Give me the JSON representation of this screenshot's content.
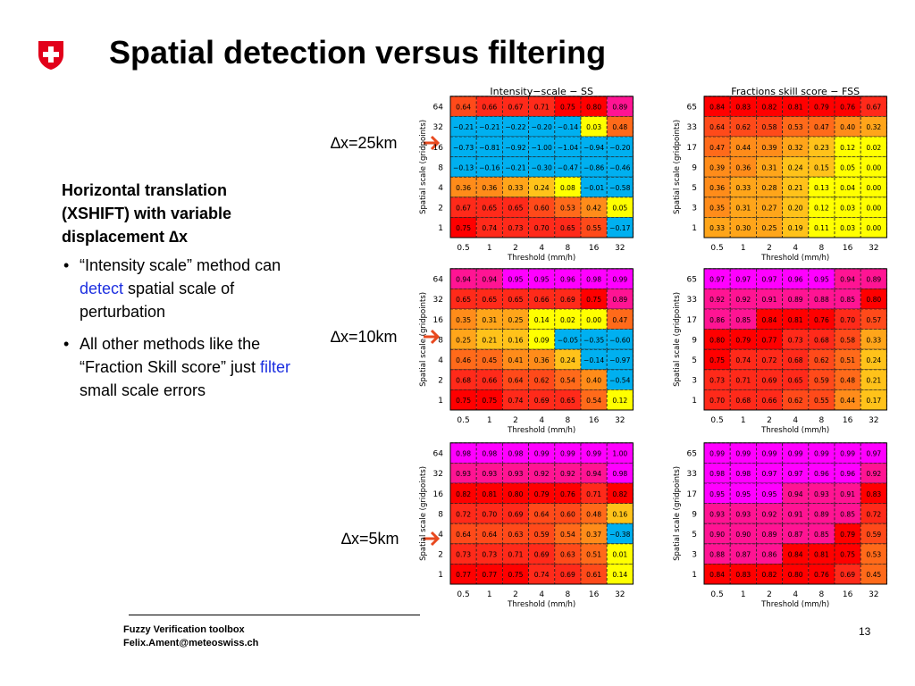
{
  "slide": {
    "title": "Spatial detection versus filtering",
    "heading_line1": "Horizontal translation",
    "heading_line2": "(XSHIFT) with variable",
    "heading_line3_text": "displacement ",
    "heading_line3_symbol": "∆x",
    "bullet1_part1": "“Intensity scale” method can ",
    "bullet1_highlight": "detect",
    "bullet1_part2": " spatial scale of perturbation",
    "bullet2_part1": "All other methods like the “Fraction Skill score” just ",
    "bullet2_highlight": "filter",
    "bullet2_part2": " small scale errors",
    "row_labels": [
      "∆x=25km",
      "∆x=10km",
      "∆x=5km"
    ],
    "footer_line1": "Fuzzy Verification toolbox",
    "footer_line2": "Felix.Ament@meteoswiss.ch",
    "page_number": "13"
  },
  "colors": {
    "logo_red": "#e2001a",
    "arrow": "#e8491f",
    "highlight_blue": "#1c2fe0"
  },
  "chart_data": [
    {
      "type": "heatmap",
      "title": "Intensity−scale − SS",
      "xlabel": "Threshold (mm/h)",
      "ylabel": "Spatial scale (gridpoints)",
      "x": [
        "0.5",
        "1",
        "2",
        "4",
        "8",
        "16",
        "32"
      ],
      "y": [
        "64",
        "32",
        "16",
        "8",
        "4",
        "2",
        "1"
      ],
      "values": [
        [
          0.64,
          0.66,
          0.67,
          0.71,
          0.75,
          0.8,
          0.89
        ],
        [
          -0.21,
          -0.21,
          -0.22,
          -0.2,
          -0.14,
          0.03,
          0.48
        ],
        [
          -0.73,
          -0.81,
          -0.92,
          -1.0,
          -1.04,
          -0.94,
          -0.2
        ],
        [
          -0.13,
          -0.16,
          -0.21,
          -0.3,
          -0.47,
          -0.86,
          -0.46
        ],
        [
          0.36,
          0.36,
          0.33,
          0.24,
          0.08,
          -0.01,
          -0.58
        ],
        [
          0.67,
          0.65,
          0.65,
          0.6,
          0.53,
          0.42,
          0.05
        ],
        [
          0.75,
          0.74,
          0.73,
          0.7,
          0.65,
          0.55,
          -0.17
        ]
      ]
    },
    {
      "type": "heatmap",
      "title": "Fractions skill score − FSS",
      "xlabel": "Threshold (mm/h)",
      "ylabel": "Spatial scale (gridpoints)",
      "x": [
        "0.5",
        "1",
        "2",
        "4",
        "8",
        "16",
        "32"
      ],
      "y": [
        "65",
        "33",
        "17",
        "9",
        "5",
        "3",
        "1"
      ],
      "values": [
        [
          0.84,
          0.83,
          0.82,
          0.81,
          0.79,
          0.76,
          0.67
        ],
        [
          0.64,
          0.62,
          0.58,
          0.53,
          0.47,
          0.4,
          0.32
        ],
        [
          0.47,
          0.44,
          0.39,
          0.32,
          0.23,
          0.12,
          0.02
        ],
        [
          0.39,
          0.36,
          0.31,
          0.24,
          0.15,
          0.05,
          0.0
        ],
        [
          0.36,
          0.33,
          0.28,
          0.21,
          0.13,
          0.04,
          0.0
        ],
        [
          0.35,
          0.31,
          0.27,
          0.2,
          0.12,
          0.03,
          0.0
        ],
        [
          0.33,
          0.3,
          0.25,
          0.19,
          0.11,
          0.03,
          0.0
        ]
      ]
    },
    {
      "type": "heatmap",
      "title": "",
      "xlabel": "Threshold (mm/h)",
      "ylabel": "Spatial scale (gridpoints)",
      "x": [
        "0.5",
        "1",
        "2",
        "4",
        "8",
        "16",
        "32"
      ],
      "y": [
        "64",
        "32",
        "16",
        "8",
        "4",
        "2",
        "1"
      ],
      "values": [
        [
          0.94,
          0.94,
          0.95,
          0.95,
          0.96,
          0.98,
          0.99
        ],
        [
          0.65,
          0.65,
          0.65,
          0.66,
          0.69,
          0.75,
          0.89
        ],
        [
          0.35,
          0.31,
          0.25,
          0.14,
          0.02,
          0.0,
          0.47
        ],
        [
          0.25,
          0.21,
          0.16,
          0.09,
          -0.05,
          -0.35,
          -0.6
        ],
        [
          0.46,
          0.45,
          0.41,
          0.36,
          0.24,
          -0.14,
          -0.97
        ],
        [
          0.68,
          0.66,
          0.64,
          0.62,
          0.54,
          0.4,
          -0.54
        ],
        [
          0.75,
          0.75,
          0.74,
          0.69,
          0.65,
          0.54,
          0.12
        ]
      ]
    },
    {
      "type": "heatmap",
      "title": "",
      "xlabel": "Threshold (mm/h)",
      "ylabel": "Spatial scale (gridpoints)",
      "x": [
        "0.5",
        "1",
        "2",
        "4",
        "8",
        "16",
        "32"
      ],
      "y": [
        "65",
        "33",
        "17",
        "9",
        "5",
        "3",
        "1"
      ],
      "values": [
        [
          0.97,
          0.97,
          0.97,
          0.96,
          0.95,
          0.94,
          0.89
        ],
        [
          0.92,
          0.92,
          0.91,
          0.89,
          0.88,
          0.85,
          0.8
        ],
        [
          0.86,
          0.85,
          0.84,
          0.81,
          0.76,
          0.7,
          0.57
        ],
        [
          0.8,
          0.79,
          0.77,
          0.73,
          0.68,
          0.58,
          0.33
        ],
        [
          0.75,
          0.74,
          0.72,
          0.68,
          0.62,
          0.51,
          0.24
        ],
        [
          0.73,
          0.71,
          0.69,
          0.65,
          0.59,
          0.48,
          0.21
        ],
        [
          0.7,
          0.68,
          0.66,
          0.62,
          0.55,
          0.44,
          0.17
        ]
      ]
    },
    {
      "type": "heatmap",
      "title": "",
      "xlabel": "Threshold (mm/h)",
      "ylabel": "Spatial scale (gridpoints)",
      "x": [
        "0.5",
        "1",
        "2",
        "4",
        "8",
        "16",
        "32"
      ],
      "y": [
        "64",
        "32",
        "16",
        "8",
        "4",
        "2",
        "1"
      ],
      "values": [
        [
          0.98,
          0.98,
          0.98,
          0.99,
          0.99,
          0.99,
          1.0
        ],
        [
          0.93,
          0.93,
          0.93,
          0.92,
          0.92,
          0.94,
          0.98
        ],
        [
          0.82,
          0.81,
          0.8,
          0.79,
          0.76,
          0.71,
          0.82
        ],
        [
          0.72,
          0.7,
          0.69,
          0.64,
          0.6,
          0.48,
          0.16
        ],
        [
          0.64,
          0.64,
          0.63,
          0.59,
          0.54,
          0.37,
          -0.38
        ],
        [
          0.73,
          0.73,
          0.71,
          0.69,
          0.63,
          0.51,
          0.01
        ],
        [
          0.77,
          0.77,
          0.75,
          0.74,
          0.69,
          0.61,
          0.14
        ]
      ]
    },
    {
      "type": "heatmap",
      "title": "",
      "xlabel": "Threshold (mm/h)",
      "ylabel": "Spatial scale (gridpoints)",
      "x": [
        "0.5",
        "1",
        "2",
        "4",
        "8",
        "16",
        "32"
      ],
      "y": [
        "65",
        "33",
        "17",
        "9",
        "5",
        "3",
        "1"
      ],
      "values": [
        [
          0.99,
          0.99,
          0.99,
          0.99,
          0.99,
          0.99,
          0.97
        ],
        [
          0.98,
          0.98,
          0.97,
          0.97,
          0.96,
          0.96,
          0.92
        ],
        [
          0.95,
          0.95,
          0.95,
          0.94,
          0.93,
          0.91,
          0.83
        ],
        [
          0.93,
          0.93,
          0.92,
          0.91,
          0.89,
          0.85,
          0.72
        ],
        [
          0.9,
          0.9,
          0.89,
          0.87,
          0.85,
          0.79,
          0.59
        ],
        [
          0.88,
          0.87,
          0.86,
          0.84,
          0.81,
          0.75,
          0.53
        ],
        [
          0.84,
          0.83,
          0.82,
          0.8,
          0.76,
          0.69,
          0.45
        ]
      ]
    }
  ]
}
